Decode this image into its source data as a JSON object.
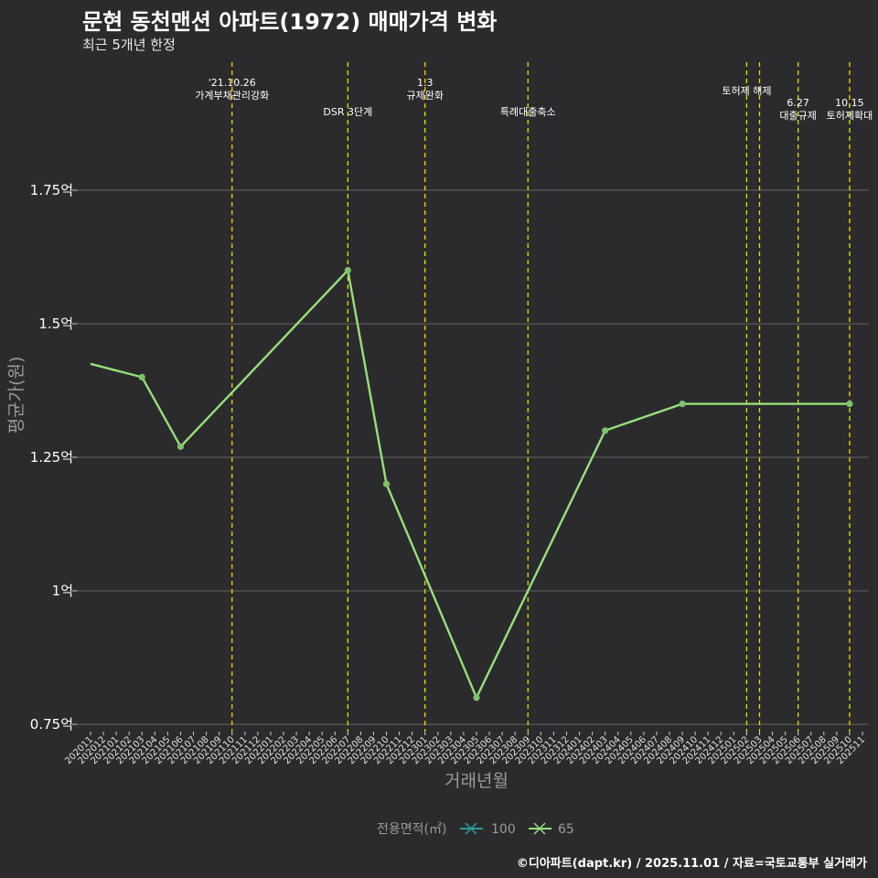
{
  "chart_data": {
    "type": "line",
    "title": "문현 동천맨션 아파트(1972) 매매가격 변화",
    "subtitle": "최근 5개년 한정",
    "xlabel": "거래년월",
    "ylabel": "평균가(원)",
    "caption": "©디아파트(dapt.kr) / 2025.11.01 / 자료=국토교통부 실거래가",
    "ylim": [
      0.75,
      2.0
    ],
    "yticks": [
      0.75,
      1.0,
      1.25,
      1.5,
      1.75
    ],
    "ytick_labels": [
      "0.75억",
      "1억",
      "1.25억",
      "1.5억",
      "1.75억"
    ],
    "categories": [
      "202011",
      "202012",
      "202101",
      "202102",
      "202103",
      "202104",
      "202105",
      "202106",
      "202107",
      "202108",
      "202109",
      "202110",
      "202111",
      "202112",
      "202201",
      "202202",
      "202203",
      "202204",
      "202205",
      "202206",
      "202207",
      "202208",
      "202209",
      "202210",
      "202211",
      "202212",
      "202301",
      "202302",
      "202303",
      "202304",
      "202305",
      "202306",
      "202307",
      "202308",
      "202309",
      "202310",
      "202311",
      "202312",
      "202401",
      "202402",
      "202403",
      "202404",
      "202405",
      "202406",
      "202407",
      "202408",
      "202409",
      "202410",
      "202411",
      "202412",
      "202501",
      "202502",
      "202503",
      "202504",
      "202505",
      "202506",
      "202507",
      "202508",
      "202509",
      "202510",
      "202511"
    ],
    "grid": true,
    "legend": {
      "title": "전용면적(㎡)",
      "position": "bottom",
      "entries": [
        {
          "name": "100",
          "color": "#2a9d9c"
        },
        {
          "name": "65",
          "color": "#98e07a"
        }
      ]
    },
    "series": [
      {
        "name": "65",
        "color": "#98e07a",
        "points": [
          {
            "x": "202011",
            "y": 1.425,
            "marker": false
          },
          {
            "x": "202103",
            "y": 1.4,
            "marker": true
          },
          {
            "x": "202106",
            "y": 1.27,
            "marker": true
          },
          {
            "x": "202207",
            "y": 1.6,
            "marker": true
          },
          {
            "x": "202210",
            "y": 1.2,
            "marker": true
          },
          {
            "x": "202305",
            "y": 0.8,
            "marker": true
          },
          {
            "x": "202403",
            "y": 1.3,
            "marker": true
          },
          {
            "x": "202409",
            "y": 1.35,
            "marker": true
          },
          {
            "x": "202510",
            "y": 1.35,
            "marker": true
          }
        ]
      }
    ],
    "annotations": [
      {
        "x": "202110",
        "lines": [
          "'21.10.26",
          "가계부채관리강화"
        ],
        "level": 0
      },
      {
        "x": "202207",
        "lines": [
          "DSR 3단계"
        ],
        "level": 2
      },
      {
        "x": "202301",
        "lines": [
          "1.3",
          "규제완화"
        ],
        "level": 0
      },
      {
        "x": "202309",
        "lines": [
          "특례대출축소"
        ],
        "level": 2
      },
      {
        "x": "202502",
        "lines": [
          "토허제 해제"
        ],
        "level": 1
      },
      {
        "x": "202503",
        "lines": [],
        "level": 1
      },
      {
        "x": "202506",
        "lines": [
          "6.27",
          "대출규제"
        ],
        "level": 1
      },
      {
        "x": "202510",
        "lines": [
          "10.15",
          "토허제확대"
        ],
        "level": 1
      }
    ],
    "annotation_color": "#e0e000"
  }
}
